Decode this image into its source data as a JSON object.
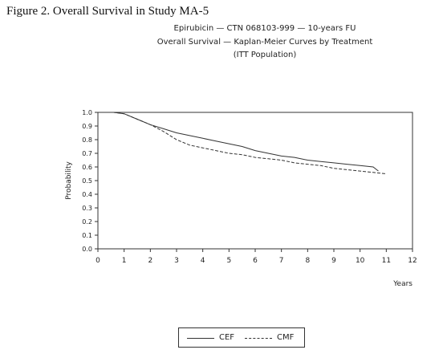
{
  "figure_caption": "Figure 2.  Overall Survival in Study MA-5",
  "chart_titles": [
    "Epirubicin — CTN 068103-999 — 10-years FU",
    "Overall Survival — Kaplan-Meier Curves by Treatment",
    "(ITT Population)"
  ],
  "chart_data": {
    "type": "line",
    "title": "Overall Survival — Kaplan-Meier Curves by Treatment",
    "xlabel": "Years",
    "ylabel": "Probability",
    "xlim": [
      0,
      12
    ],
    "ylim": [
      0.0,
      1.0
    ],
    "x_ticks": [
      "0",
      "1",
      "2",
      "3",
      "4",
      "5",
      "6",
      "7",
      "8",
      "9",
      "10",
      "11",
      "12"
    ],
    "y_ticks": [
      "0.0",
      "0.1",
      "0.2",
      "0.3",
      "0.4",
      "0.5",
      "0.6",
      "0.7",
      "0.8",
      "0.9",
      "1.0"
    ],
    "grid": false,
    "legend_placement": "bottom",
    "series": [
      {
        "name": "CEF",
        "style": "solid",
        "color": "#333333",
        "points": [
          [
            0,
            1.0
          ],
          [
            0.6,
            1.0
          ],
          [
            1.0,
            0.99
          ],
          [
            1.5,
            0.95
          ],
          [
            2.0,
            0.91
          ],
          [
            2.5,
            0.88
          ],
          [
            3.0,
            0.85
          ],
          [
            3.5,
            0.83
          ],
          [
            4.0,
            0.81
          ],
          [
            4.5,
            0.79
          ],
          [
            5.0,
            0.77
          ],
          [
            5.5,
            0.75
          ],
          [
            6.0,
            0.72
          ],
          [
            6.5,
            0.7
          ],
          [
            7.0,
            0.68
          ],
          [
            7.5,
            0.67
          ],
          [
            8.0,
            0.65
          ],
          [
            8.5,
            0.64
          ],
          [
            9.0,
            0.63
          ],
          [
            9.5,
            0.62
          ],
          [
            10.0,
            0.61
          ],
          [
            10.5,
            0.6
          ],
          [
            10.7,
            0.57
          ]
        ]
      },
      {
        "name": "CMF",
        "style": "dashed",
        "color": "#333333",
        "points": [
          [
            0,
            1.0
          ],
          [
            0.6,
            1.0
          ],
          [
            1.0,
            0.99
          ],
          [
            1.5,
            0.95
          ],
          [
            2.0,
            0.91
          ],
          [
            2.5,
            0.86
          ],
          [
            3.0,
            0.8
          ],
          [
            3.5,
            0.76
          ],
          [
            4.0,
            0.74
          ],
          [
            4.5,
            0.72
          ],
          [
            5.0,
            0.7
          ],
          [
            5.5,
            0.69
          ],
          [
            6.0,
            0.67
          ],
          [
            6.5,
            0.66
          ],
          [
            7.0,
            0.65
          ],
          [
            7.5,
            0.63
          ],
          [
            8.0,
            0.62
          ],
          [
            8.5,
            0.61
          ],
          [
            9.0,
            0.59
          ],
          [
            9.5,
            0.58
          ],
          [
            10.0,
            0.57
          ],
          [
            10.5,
            0.56
          ],
          [
            11.0,
            0.55
          ]
        ]
      }
    ]
  }
}
